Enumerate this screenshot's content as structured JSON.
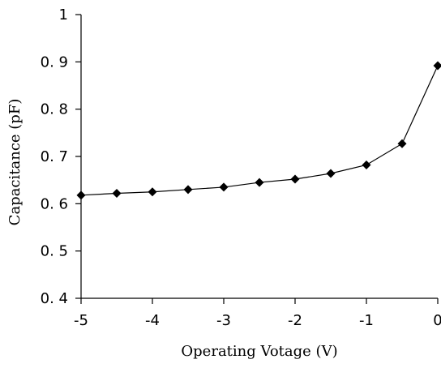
{
  "chart_data": {
    "type": "line",
    "title": "",
    "xlabel": "Operating Votage (V)",
    "ylabel": "Capacitance (pF)",
    "xlim": [
      -5,
      0
    ],
    "ylim": [
      0.4,
      1
    ],
    "x_ticks": [
      -5,
      -4,
      -3,
      -2,
      -1,
      0
    ],
    "x_tick_labels": [
      "-5",
      "-4",
      "-3",
      "-2",
      "-1",
      "0"
    ],
    "y_ticks": [
      0.4,
      0.5,
      0.6,
      0.7,
      0.8,
      0.9,
      1
    ],
    "y_tick_labels": [
      "0. 4",
      "0. 5",
      "0. 6",
      "0. 7",
      "0. 8",
      "0. 9",
      "1"
    ],
    "grid": false,
    "legend": "none",
    "marker": "diamond",
    "color": "#000000",
    "series": [
      {
        "x": [
          -5,
          -4.5,
          -4,
          -3.5,
          -3,
          -2.5,
          -2,
          -1.5,
          -1,
          -0.5,
          0
        ],
        "y": [
          0.618,
          0.622,
          0.625,
          0.63,
          0.635,
          0.645,
          0.652,
          0.664,
          0.682,
          0.727,
          0.892
        ]
      }
    ]
  }
}
